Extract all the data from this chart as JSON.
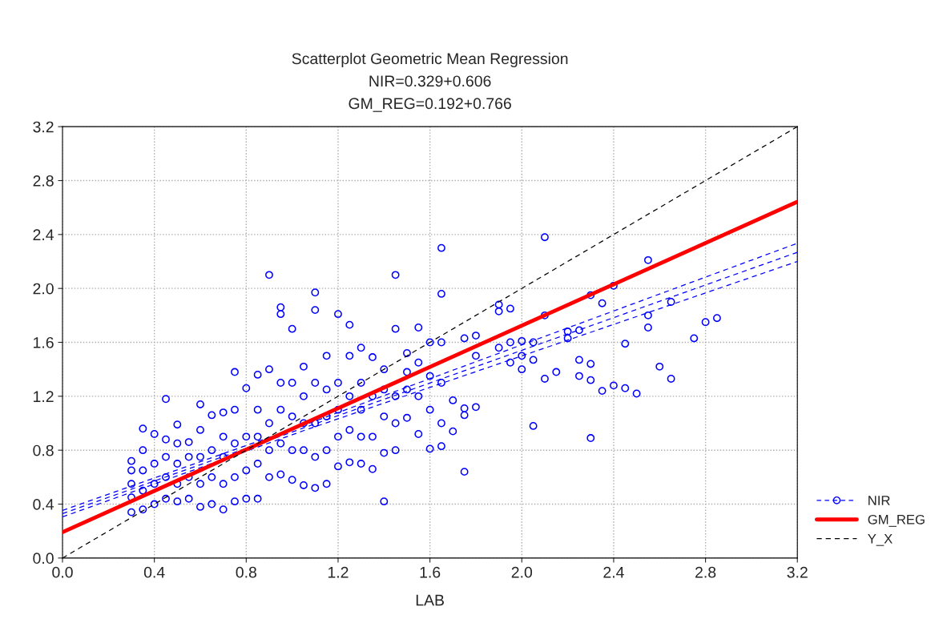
{
  "chart_data": {
    "type": "scatter",
    "title": "Scatterplot Geometric Mean Regression\nNIR=0.329+0.606\nGM_REG=0.192+0.766",
    "xlabel": "LAB",
    "xlim": [
      0.0,
      3.2
    ],
    "ylim": [
      0.0,
      3.2
    ],
    "xticks": [
      {
        "value": 0,
        "label": "0.0"
      },
      0.4,
      0.8,
      1.2,
      1.6,
      {
        "value": 2,
        "label": "2.0"
      },
      2.4,
      2.8,
      3.2
    ],
    "yticks": [
      {
        "value": 0,
        "label": "0.0"
      },
      0.4,
      0.8,
      1.2,
      1.6,
      {
        "value": 2,
        "label": "2.0"
      },
      2.4,
      2.8,
      3.2
    ],
    "grid": true,
    "legend": "bottom right",
    "series": [
      {
        "name": "NIR",
        "color": "#0000ff",
        "marker": "circle",
        "x": [
          0.3,
          0.3,
          0.3,
          0.3,
          0.3,
          0.35,
          0.35,
          0.35,
          0.35,
          0.35,
          0.4,
          0.4,
          0.4,
          0.4,
          0.45,
          0.45,
          0.45,
          0.45,
          0.45,
          0.5,
          0.5,
          0.5,
          0.5,
          0.5,
          0.55,
          0.55,
          0.55,
          0.55,
          0.6,
          0.6,
          0.6,
          0.6,
          0.6,
          0.65,
          0.65,
          0.65,
          0.65,
          0.7,
          0.7,
          0.7,
          0.7,
          0.7,
          0.75,
          0.75,
          0.75,
          0.75,
          0.75,
          0.8,
          0.8,
          0.8,
          0.8,
          0.85,
          0.85,
          0.85,
          0.85,
          0.85,
          0.9,
          0.9,
          0.9,
          0.9,
          0.9,
          0.95,
          0.95,
          0.95,
          0.95,
          0.95,
          0.95,
          1.0,
          1.0,
          1.0,
          1.0,
          1.0,
          1.05,
          1.05,
          1.05,
          1.05,
          1.05,
          1.1,
          1.1,
          1.1,
          1.1,
          1.1,
          1.1,
          1.15,
          1.15,
          1.15,
          1.15,
          1.15,
          1.2,
          1.2,
          1.2,
          1.2,
          1.2,
          1.25,
          1.25,
          1.25,
          1.25,
          1.25,
          1.3,
          1.3,
          1.3,
          1.3,
          1.3,
          1.35,
          1.35,
          1.35,
          1.35,
          1.4,
          1.4,
          1.4,
          1.4,
          1.4,
          1.45,
          1.45,
          1.45,
          1.45,
          1.45,
          1.5,
          1.5,
          1.5,
          1.5,
          1.55,
          1.55,
          1.55,
          1.55,
          1.6,
          1.6,
          1.6,
          1.6,
          1.65,
          1.65,
          1.65,
          1.65,
          1.65,
          1.65,
          1.7,
          1.7,
          1.75,
          1.75,
          1.75,
          1.75,
          1.8,
          1.8,
          1.8,
          1.9,
          1.9,
          1.9,
          1.95,
          1.95,
          1.95,
          2.0,
          2.0,
          2.0,
          2.05,
          2.05,
          2.05,
          2.1,
          2.1,
          2.1,
          2.15,
          2.2,
          2.2,
          2.25,
          2.25,
          2.25,
          2.3,
          2.3,
          2.3,
          2.3,
          2.35,
          2.35,
          2.4,
          2.4,
          2.45,
          2.45,
          2.5,
          2.55,
          2.55,
          2.55,
          2.6,
          2.65,
          2.65,
          2.75,
          2.8,
          2.85
        ],
        "values": [
          0.34,
          0.45,
          0.55,
          0.65,
          0.72,
          0.36,
          0.5,
          0.65,
          0.8,
          0.96,
          0.4,
          0.55,
          0.7,
          0.92,
          0.44,
          0.6,
          0.75,
          0.88,
          1.18,
          0.42,
          0.55,
          0.7,
          0.85,
          0.99,
          0.44,
          0.6,
          0.75,
          0.86,
          0.38,
          0.55,
          0.75,
          0.95,
          1.14,
          0.4,
          0.6,
          0.8,
          1.06,
          0.36,
          0.55,
          0.75,
          0.9,
          1.08,
          0.42,
          0.6,
          0.85,
          1.1,
          1.38,
          0.44,
          0.65,
          0.9,
          1.26,
          0.44,
          0.7,
          0.9,
          1.1,
          1.36,
          0.6,
          0.8,
          1.0,
          1.4,
          2.1,
          0.62,
          0.85,
          1.1,
          1.3,
          1.81,
          1.86,
          0.58,
          0.8,
          1.05,
          1.3,
          1.7,
          0.54,
          0.8,
          1.0,
          1.2,
          1.42,
          0.52,
          0.75,
          1.0,
          1.3,
          1.84,
          1.97,
          0.55,
          0.8,
          1.05,
          1.25,
          1.5,
          0.68,
          0.9,
          1.1,
          1.3,
          1.81,
          0.71,
          0.95,
          1.2,
          1.5,
          1.73,
          0.7,
          0.9,
          1.1,
          1.3,
          1.56,
          0.66,
          0.9,
          1.2,
          1.49,
          0.42,
          0.78,
          1.05,
          1.25,
          1.4,
          0.8,
          1.0,
          1.2,
          1.7,
          2.1,
          1.04,
          1.25,
          1.38,
          1.52,
          0.92,
          1.2,
          1.45,
          1.71,
          0.81,
          1.1,
          1.35,
          1.6,
          0.83,
          1.0,
          1.3,
          1.6,
          1.96,
          2.3,
          0.94,
          1.17,
          0.64,
          1.06,
          1.11,
          1.63,
          1.12,
          1.5,
          1.65,
          1.56,
          1.83,
          1.88,
          1.45,
          1.6,
          1.85,
          1.4,
          1.5,
          1.61,
          0.98,
          1.47,
          1.6,
          1.33,
          1.8,
          2.38,
          1.38,
          1.63,
          1.68,
          1.35,
          1.47,
          1.69,
          0.89,
          1.32,
          1.44,
          1.95,
          1.24,
          1.89,
          1.28,
          2.02,
          1.26,
          1.59,
          1.22,
          1.71,
          1.8,
          2.21,
          1.42,
          1.33,
          1.9,
          1.63,
          1.75,
          1.78
        ]
      },
      {
        "type": "line",
        "color": "#0000ff",
        "line_style": "dashed",
        "x": [
          0.0,
          3.2
        ],
        "values": [
          0.329,
          2.268
        ]
      },
      {
        "type": "line",
        "color": "#0000ff",
        "line_style": "dashed",
        "x": [
          0.0,
          1.05,
          3.2
        ],
        "values": [
          0.305,
          0.945,
          2.2
        ]
      },
      {
        "type": "line",
        "color": "#0000ff",
        "line_style": "dashed",
        "x": [
          0.0,
          1.05,
          3.2
        ],
        "values": [
          0.353,
          0.985,
          2.335
        ]
      },
      {
        "name": "GM_REG",
        "type": "line",
        "color": "#ff0000",
        "line_style": "solid",
        "x": [
          0.0,
          3.2
        ],
        "values": [
          0.192,
          2.643
        ]
      },
      {
        "name": "Y_X",
        "type": "line",
        "color": "#000000",
        "line_style": "dashed",
        "x": [
          0.0,
          3.2
        ],
        "values": [
          0.0,
          3.2
        ]
      }
    ]
  }
}
